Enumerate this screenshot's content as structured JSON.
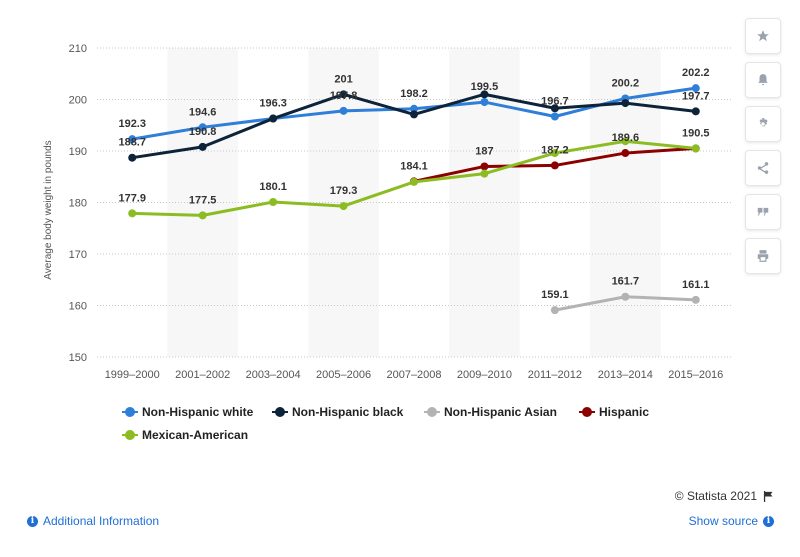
{
  "chart_data": {
    "type": "line",
    "title": "",
    "xlabel": "",
    "ylabel": "Average body weight in pounds",
    "ylim": [
      150,
      210
    ],
    "yticks": [
      150,
      160,
      170,
      180,
      190,
      200,
      210
    ],
    "grid": true,
    "legend_position": "bottom",
    "categories": [
      "1999–2000",
      "2001–2002",
      "2003–2004",
      "2005–2006",
      "2007–2008",
      "2009–2010",
      "2011–2012",
      "2013–2014",
      "2015–2016"
    ],
    "series": [
      {
        "name": "Non-Hispanic white",
        "color": "#2f7ed8",
        "values": [
          192.3,
          194.6,
          196.3,
          197.8,
          198.2,
          199.5,
          196.7,
          200.2,
          202.2
        ]
      },
      {
        "name": "Non-Hispanic black",
        "color": "#0d233a",
        "values": [
          188.7,
          190.8,
          196.3,
          201,
          197.1,
          201.0,
          198.3,
          199.3,
          197.7
        ]
      },
      {
        "name": "Non-Hispanic Asian",
        "color": "#b3b3b3",
        "values": [
          null,
          null,
          null,
          null,
          null,
          null,
          159.1,
          161.7,
          161.1
        ]
      },
      {
        "name": "Hispanic",
        "color": "#8b0000",
        "values": [
          null,
          null,
          null,
          null,
          184.1,
          187,
          187.2,
          189.6,
          190.5
        ]
      },
      {
        "name": "Mexican-American",
        "color": "#8bbc21",
        "values": [
          177.9,
          177.5,
          180.1,
          179.3,
          184.0,
          185.6,
          189.6,
          191.9,
          190.5
        ]
      }
    ],
    "data_labels": [
      {
        "text": "192.3",
        "category": 0,
        "value": 192.3
      },
      {
        "text": "188.7",
        "category": 0,
        "value": 188.7
      },
      {
        "text": "177.9",
        "category": 0,
        "value": 177.9
      },
      {
        "text": "194.6",
        "category": 1,
        "value": 194.6
      },
      {
        "text": "190.8",
        "category": 1,
        "value": 190.8
      },
      {
        "text": "177.5",
        "category": 1,
        "value": 177.5
      },
      {
        "text": "196.3",
        "category": 2,
        "value": 196.3
      },
      {
        "text": "180.1",
        "category": 2,
        "value": 180.1
      },
      {
        "text": "201",
        "category": 3,
        "value": 201
      },
      {
        "text": "197.8",
        "category": 3,
        "value": 197.8
      },
      {
        "text": "179.3",
        "category": 3,
        "value": 179.3
      },
      {
        "text": "198.2",
        "category": 4,
        "value": 198.2
      },
      {
        "text": "184.1",
        "category": 4,
        "value": 184.1
      },
      {
        "text": "199.5",
        "category": 5,
        "value": 199.5
      },
      {
        "text": "187",
        "category": 5,
        "value": 187
      },
      {
        "text": "196.7",
        "category": 6,
        "value": 196.7
      },
      {
        "text": "187.2",
        "category": 6,
        "value": 187.2
      },
      {
        "text": "159.1",
        "category": 6,
        "value": 159.1
      },
      {
        "text": "200.2",
        "category": 7,
        "value": 200.2
      },
      {
        "text": "189.6",
        "category": 7,
        "value": 189.6
      },
      {
        "text": "161.7",
        "category": 7,
        "value": 161.7
      },
      {
        "text": "202.2",
        "category": 8,
        "value": 202.2
      },
      {
        "text": "197.7",
        "category": 8,
        "value": 197.7
      },
      {
        "text": "190.5",
        "category": 8,
        "value": 190.5
      },
      {
        "text": "161.1",
        "category": 8,
        "value": 161.1
      }
    ]
  },
  "legend": {
    "items": [
      {
        "label": "Non-Hispanic white",
        "color": "#2f7ed8"
      },
      {
        "label": "Non-Hispanic black",
        "color": "#0d233a"
      },
      {
        "label": "Non-Hispanic Asian",
        "color": "#b3b3b3"
      },
      {
        "label": "Hispanic",
        "color": "#8b0000"
      },
      {
        "label": "Mexican-American",
        "color": "#8bbc21"
      }
    ]
  },
  "sidebar": {
    "buttons": [
      {
        "name": "favorite-button",
        "icon": "star-icon"
      },
      {
        "name": "notification-button",
        "icon": "bell-icon"
      },
      {
        "name": "settings-button",
        "icon": "gear-icon"
      },
      {
        "name": "share-button",
        "icon": "share-icon"
      },
      {
        "name": "cite-button",
        "icon": "quote-icon"
      },
      {
        "name": "print-button",
        "icon": "printer-icon"
      }
    ]
  },
  "footer": {
    "copyright": "© Statista 2021",
    "additional_info": "Additional Information",
    "show_source": "Show source"
  }
}
